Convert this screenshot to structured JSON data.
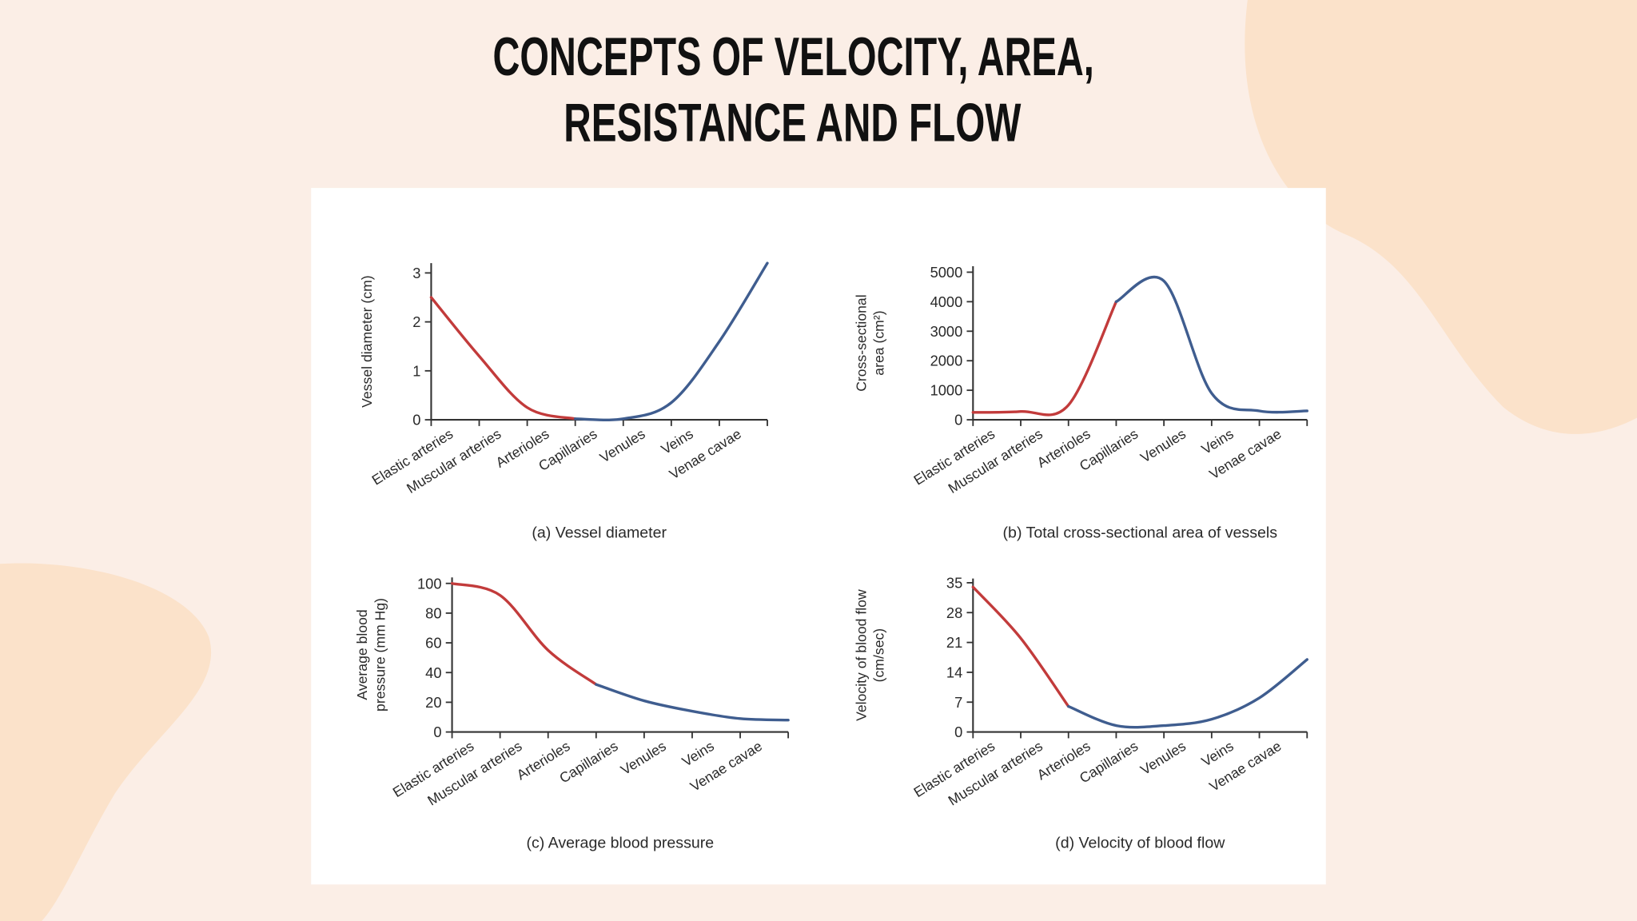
{
  "title": [
    "CONCEPTS OF VELOCITY, AREA,",
    "RESISTANCE AND FLOW"
  ],
  "chart_data": [
    {
      "type": "line",
      "caption": "(a) Vessel diameter",
      "ylabel": [
        "Vessel diameter (cm)"
      ],
      "categories": [
        "Elastic arteries",
        "Muscular arteries",
        "Arterioles",
        "Capillaries",
        "Venules",
        "Veins",
        "Venae cavae",
        null
      ],
      "series": [
        {
          "color": "#c23b3b",
          "values": [
            2.5,
            1.3,
            0.25,
            0.02,
            null,
            null,
            null,
            null
          ]
        },
        {
          "color": "#3f5d8f",
          "values": [
            null,
            null,
            null,
            0.02,
            0.02,
            0.35,
            1.6,
            3.2
          ]
        }
      ],
      "ylim": [
        0,
        3.2
      ],
      "yticks": [
        0,
        1,
        2,
        3
      ]
    },
    {
      "type": "line",
      "caption": "(b) Total cross-sectional area of vessels",
      "ylabel": [
        "Cross-sectional",
        "area (cm²)"
      ],
      "categories": [
        "Elastic arteries",
        "Muscular arteries",
        "Arterioles",
        "Capillaries",
        "Venules",
        "Veins",
        "Venae cavae",
        null
      ],
      "series": [
        {
          "color": "#c23b3b",
          "values": [
            250,
            280,
            500,
            4000,
            null,
            null,
            null,
            null
          ]
        },
        {
          "color": "#3f5d8f",
          "values": [
            null,
            null,
            null,
            4000,
            4700,
            900,
            300,
            300
          ]
        }
      ],
      "ylim": [
        0,
        5200
      ],
      "yticks": [
        0,
        1000,
        2000,
        3000,
        4000,
        5000
      ]
    },
    {
      "type": "line",
      "caption": "(c) Average blood pressure",
      "ylabel": [
        "Average blood",
        "pressure (mm Hg)"
      ],
      "categories": [
        "Elastic arteries",
        "Muscular arteries",
        "Arterioles",
        "Capillaries",
        "Venules",
        "Veins",
        "Venae cavae",
        null
      ],
      "series": [
        {
          "color": "#c23b3b",
          "values": [
            100,
            92,
            55,
            32,
            null,
            null,
            null,
            null
          ]
        },
        {
          "color": "#3f5d8f",
          "values": [
            null,
            null,
            null,
            32,
            21,
            14,
            9,
            8
          ]
        }
      ],
      "ylim": [
        0,
        104
      ],
      "yticks": [
        0,
        20,
        40,
        60,
        80,
        100
      ]
    },
    {
      "type": "line",
      "caption": "(d) Velocity of blood flow",
      "ylabel": [
        "Velocity of blood flow",
        "(cm/sec)"
      ],
      "categories": [
        "Elastic arteries",
        "Muscular arteries",
        "Arterioles",
        "Capillaries",
        "Venules",
        "Veins",
        "Venae cavae",
        null
      ],
      "series": [
        {
          "color": "#c23b3b",
          "values": [
            34,
            22,
            6,
            null,
            null,
            null,
            null,
            null
          ]
        },
        {
          "color": "#3f5d8f",
          "values": [
            null,
            null,
            6,
            1.5,
            1.5,
            3,
            8,
            17
          ]
        }
      ],
      "ylim": [
        0,
        36
      ],
      "yticks": [
        0,
        7,
        14,
        21,
        28,
        35
      ]
    }
  ]
}
